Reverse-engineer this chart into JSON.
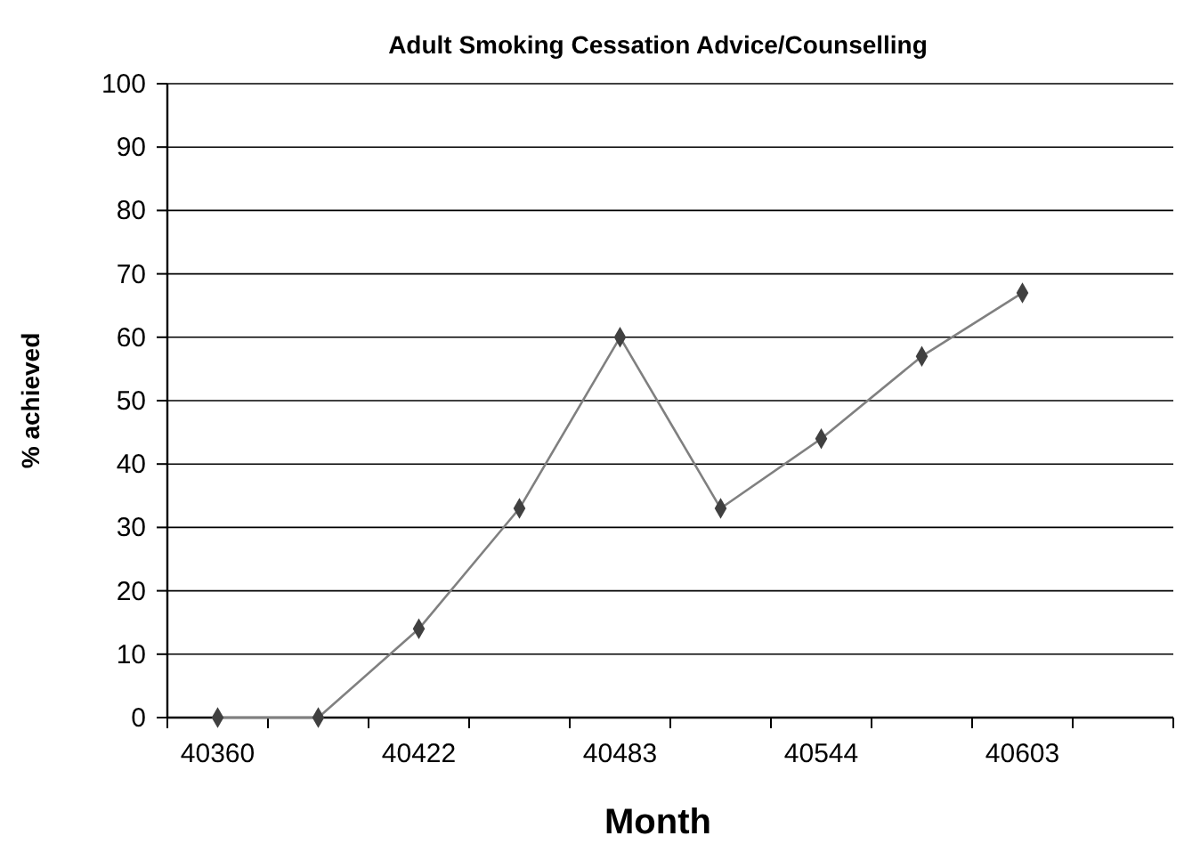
{
  "chart_data": {
    "type": "line",
    "title": "Adult Smoking Cessation Advice/Counselling",
    "xlabel": "Month",
    "ylabel": "% achieved",
    "categories": [
      "40360",
      null,
      "40422",
      null,
      "40483",
      null,
      "40544",
      null,
      "40603",
      null
    ],
    "series": [
      {
        "color": "#808080",
        "values": [
          0,
          0,
          14,
          33,
          60,
          33,
          44,
          57,
          67,
          null
        ]
      }
    ],
    "ylim": [
      0,
      100
    ],
    "yticks": [
      0,
      10,
      20,
      30,
      40,
      50,
      60,
      70,
      80,
      90,
      100
    ],
    "grid": "y",
    "marker": "diamond",
    "line_style": "solid"
  }
}
